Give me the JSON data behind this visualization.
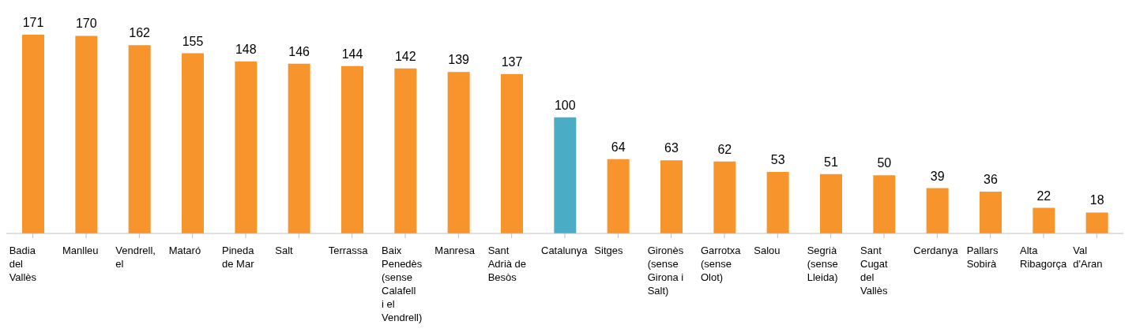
{
  "chart_data": {
    "type": "bar",
    "categories": [
      "Badia del Vallès",
      "Manlleu",
      "Vendrell, el",
      "Mataró",
      "Pineda de Mar",
      "Salt",
      "Terrassa",
      "Baix Penedès (sense Calafell i el Vendrell)",
      "Manresa",
      "Sant Adrià de Besòs",
      "Catalunya",
      "Sitges",
      "Gironès (sense Girona i Salt)",
      "Garrotxa (sense Olot)",
      "Salou",
      "Segrià (sense Lleida)",
      "Sant Cugat del Vallès",
      "Cerdanya",
      "Pallars Sobirà",
      "Alta Ribagorça",
      "Val d'Aran"
    ],
    "values": [
      171,
      170,
      162,
      155,
      148,
      146,
      144,
      142,
      139,
      137,
      100,
      64,
      63,
      62,
      53,
      51,
      50,
      39,
      36,
      22,
      18
    ],
    "colors": [
      "#f7942c",
      "#f7942c",
      "#f7942c",
      "#f7942c",
      "#f7942c",
      "#f7942c",
      "#f7942c",
      "#f7942c",
      "#f7942c",
      "#f7942c",
      "#4bacc6",
      "#f7942c",
      "#f7942c",
      "#f7942c",
      "#f7942c",
      "#f7942c",
      "#f7942c",
      "#f7942c",
      "#f7942c",
      "#f7942c",
      "#f7942c"
    ],
    "data_labels": true,
    "grid": false,
    "legend": false
  }
}
